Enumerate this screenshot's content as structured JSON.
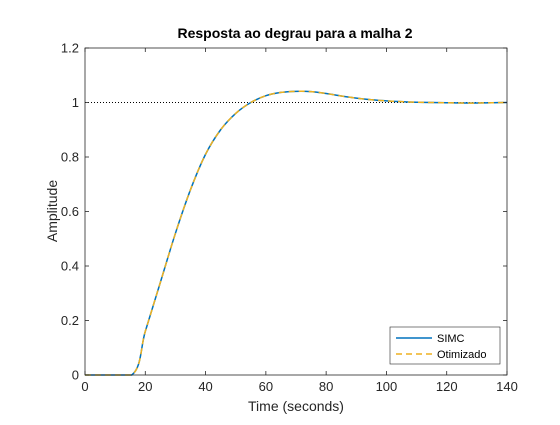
{
  "chart_data": {
    "type": "line",
    "title": "Resposta ao degrau para a malha 2",
    "xlabel": "Time (seconds)",
    "ylabel": "Amplitude",
    "xlim": [
      0,
      140
    ],
    "ylim": [
      0,
      1.2
    ],
    "xticks": [
      0,
      20,
      40,
      60,
      80,
      100,
      120,
      140
    ],
    "yticks": [
      0,
      0.2,
      0.4,
      0.6,
      0.8,
      1,
      1.2
    ],
    "xtick_labels": [
      "0",
      "20",
      "40",
      "60",
      "80",
      "100",
      "120",
      "140"
    ],
    "ytick_labels": [
      "0",
      "0.2",
      "0.4",
      "0.6",
      "0.8",
      "1",
      "1.2"
    ],
    "reference_line": {
      "y": 1,
      "style": "dotted",
      "color": "#000000"
    },
    "grid": false,
    "legend_position": "bottom-right",
    "series": [
      {
        "name": "SIMC",
        "color": "#0072BD",
        "style": "solid",
        "x": [
          0,
          15.5,
          20,
          25,
          30,
          35,
          40,
          45,
          50,
          55,
          60,
          65,
          70,
          75,
          80,
          85,
          90,
          95,
          100,
          105,
          110,
          115,
          120,
          125,
          130,
          135,
          140
        ],
        "y": [
          0,
          0,
          0.16,
          0.34,
          0.52,
          0.68,
          0.81,
          0.9,
          0.96,
          1.0,
          1.025,
          1.037,
          1.041,
          1.04,
          1.033,
          1.024,
          1.016,
          1.01,
          1.006,
          1.003,
          1.001,
          1.0,
          0.999,
          0.998,
          0.998,
          0.999,
          1.0
        ]
      },
      {
        "name": "Otimizado",
        "color": "#EDB120",
        "style": "dashed",
        "x": [
          0,
          15.5,
          20,
          25,
          30,
          35,
          40,
          45,
          50,
          55,
          60,
          65,
          70,
          75,
          80,
          85,
          90,
          95,
          100,
          105,
          110,
          115,
          120,
          125,
          130,
          135,
          140
        ],
        "y": [
          0,
          0,
          0.16,
          0.34,
          0.52,
          0.68,
          0.81,
          0.9,
          0.96,
          1.0,
          1.025,
          1.037,
          1.041,
          1.04,
          1.033,
          1.024,
          1.016,
          1.01,
          1.006,
          1.003,
          1.001,
          1.0,
          0.999,
          0.998,
          0.998,
          0.999,
          1.0
        ]
      }
    ]
  }
}
